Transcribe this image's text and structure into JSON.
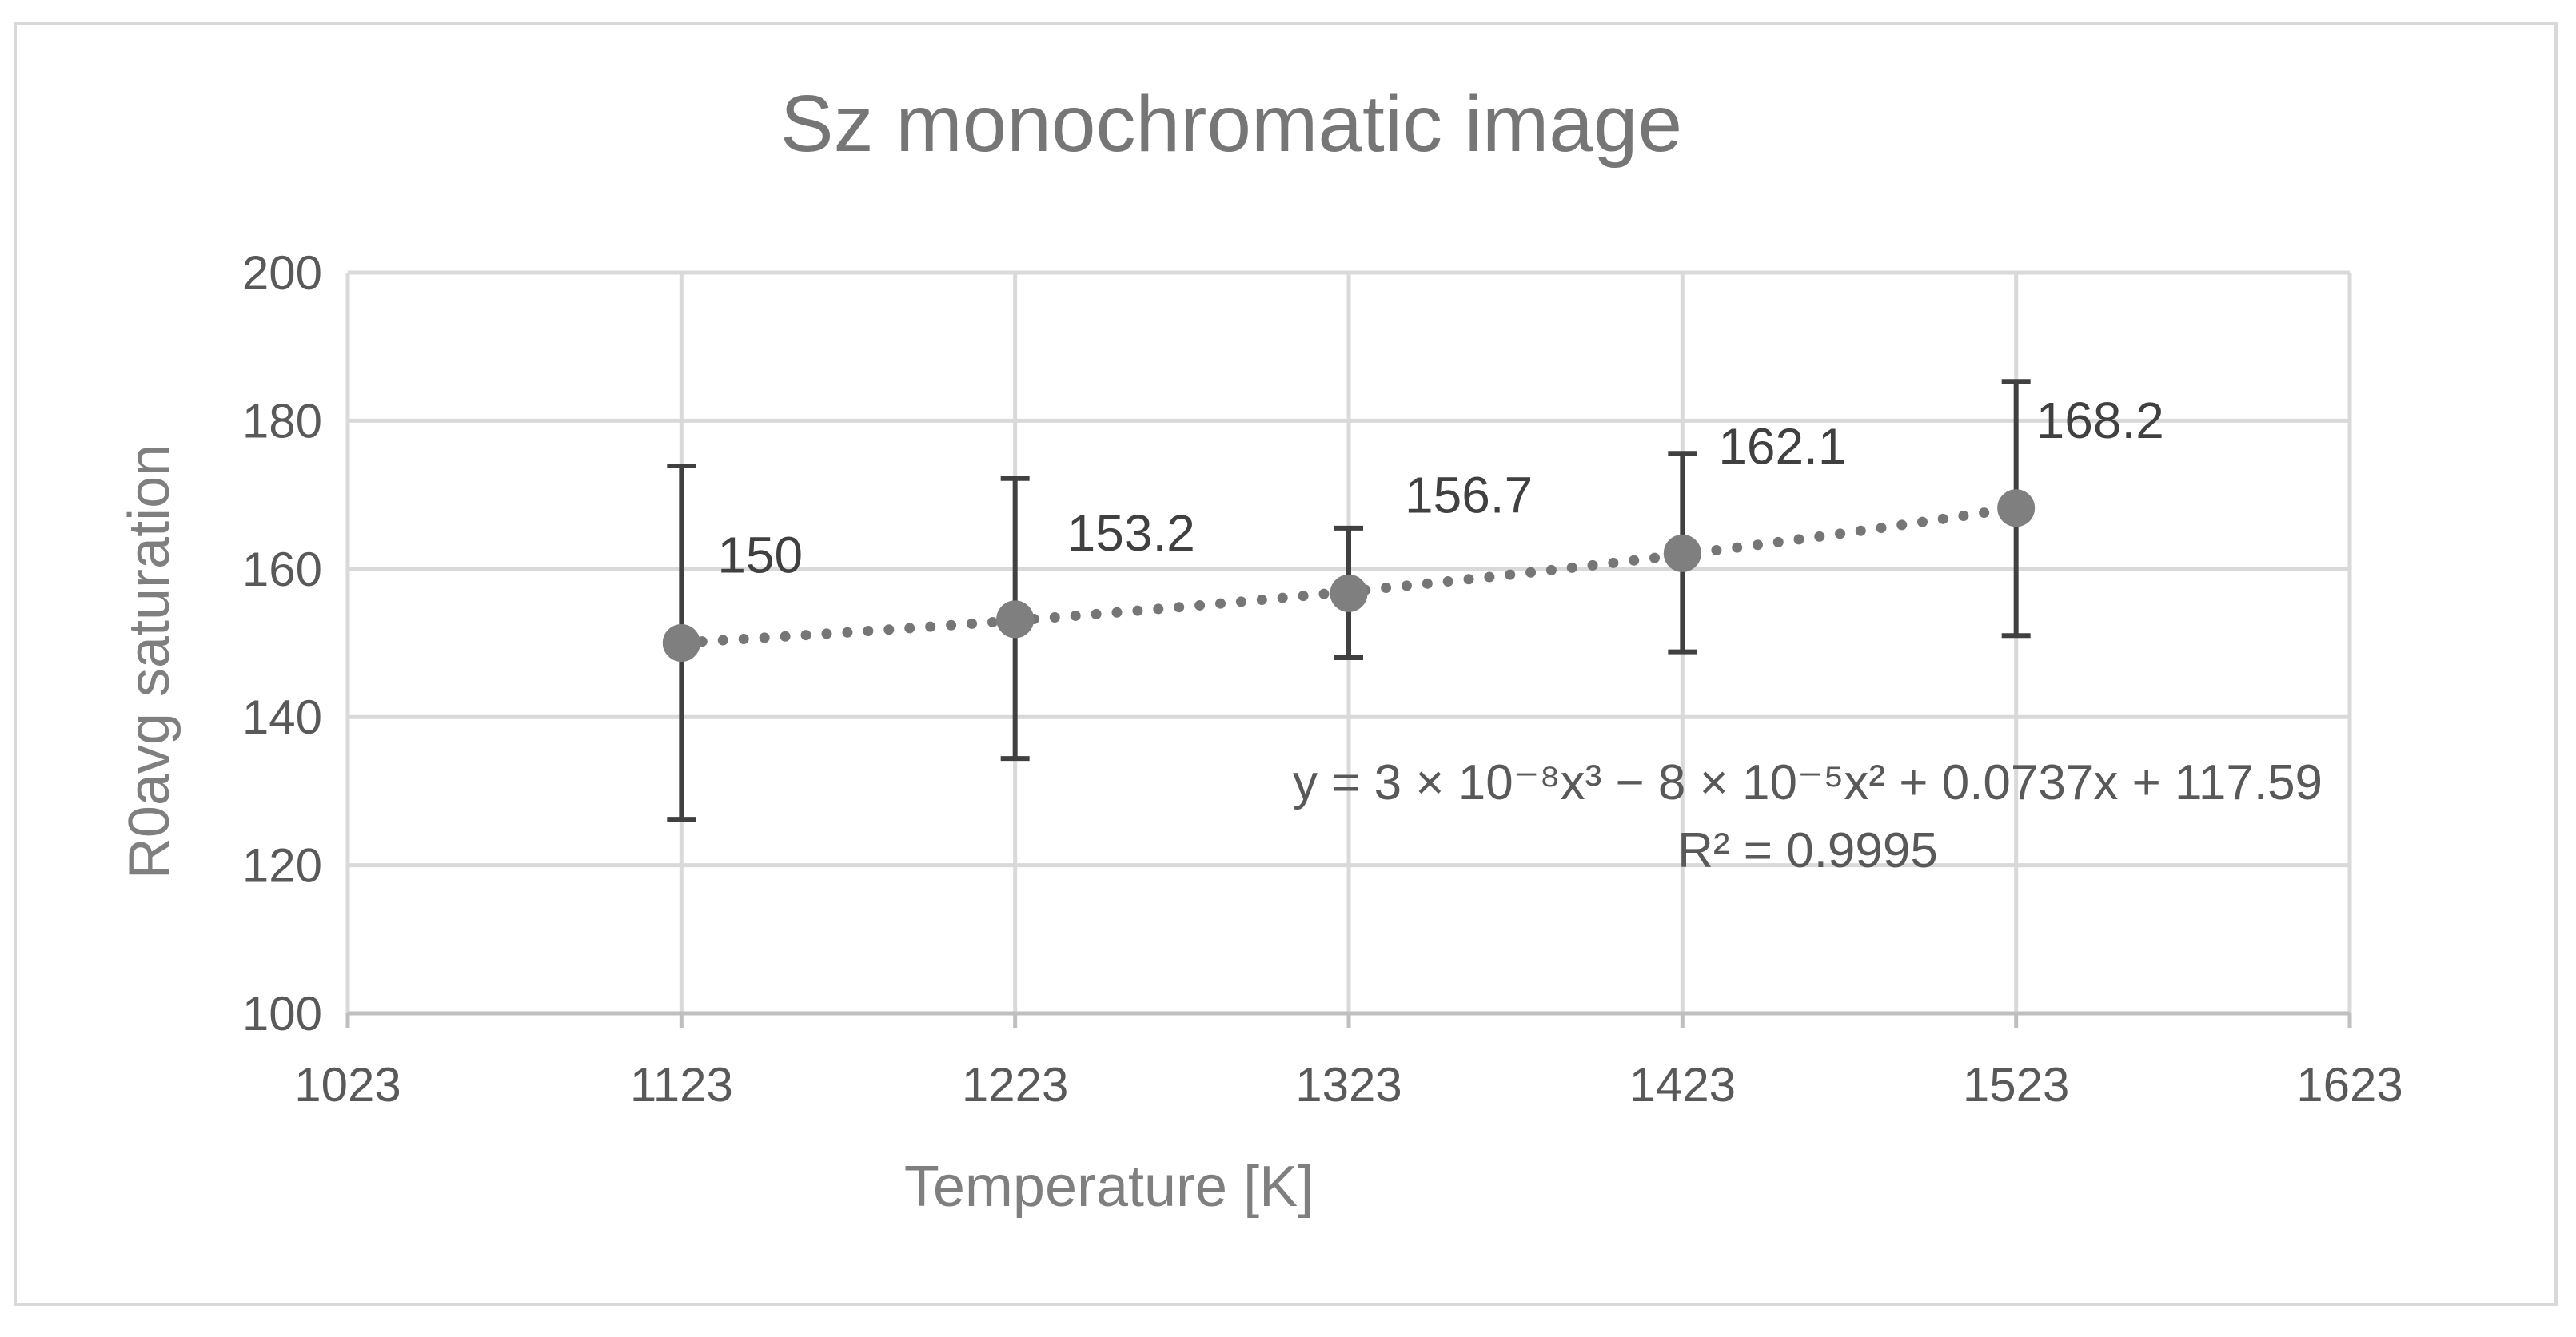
{
  "chart_data": {
    "type": "scatter",
    "title": "Sz monochromatic image",
    "xlabel": "Temperature [K]",
    "ylabel": "R0avg saturation",
    "xlim": [
      1023,
      1623
    ],
    "ylim": [
      100,
      200
    ],
    "x_ticks": [
      1023,
      1123,
      1223,
      1323,
      1423,
      1523,
      1623
    ],
    "y_ticks": [
      100,
      120,
      140,
      160,
      180,
      200
    ],
    "grid": true,
    "series": [
      {
        "x": [
          1123,
          1223,
          1323,
          1423,
          1523
        ],
        "y": [
          150,
          153.2,
          156.7,
          162.1,
          168.2
        ],
        "labels": [
          "150",
          "153.2",
          "156.7",
          "162.1",
          "168.2"
        ],
        "error_low": [
          126.2,
          134.4,
          148.0,
          148.8,
          151.0
        ],
        "error_high": [
          173.9,
          172.2,
          165.5,
          175.6,
          185.3
        ],
        "color": "#7f7f7f"
      }
    ],
    "trendline": {
      "type": "polynomial",
      "order": 3,
      "style": "dotted",
      "equation": "y = 3 × 10⁻⁸x³ − 8 × 10⁻⁵x² + 0.0737x + 117.59",
      "r_squared": "R² = 0.9995"
    }
  }
}
